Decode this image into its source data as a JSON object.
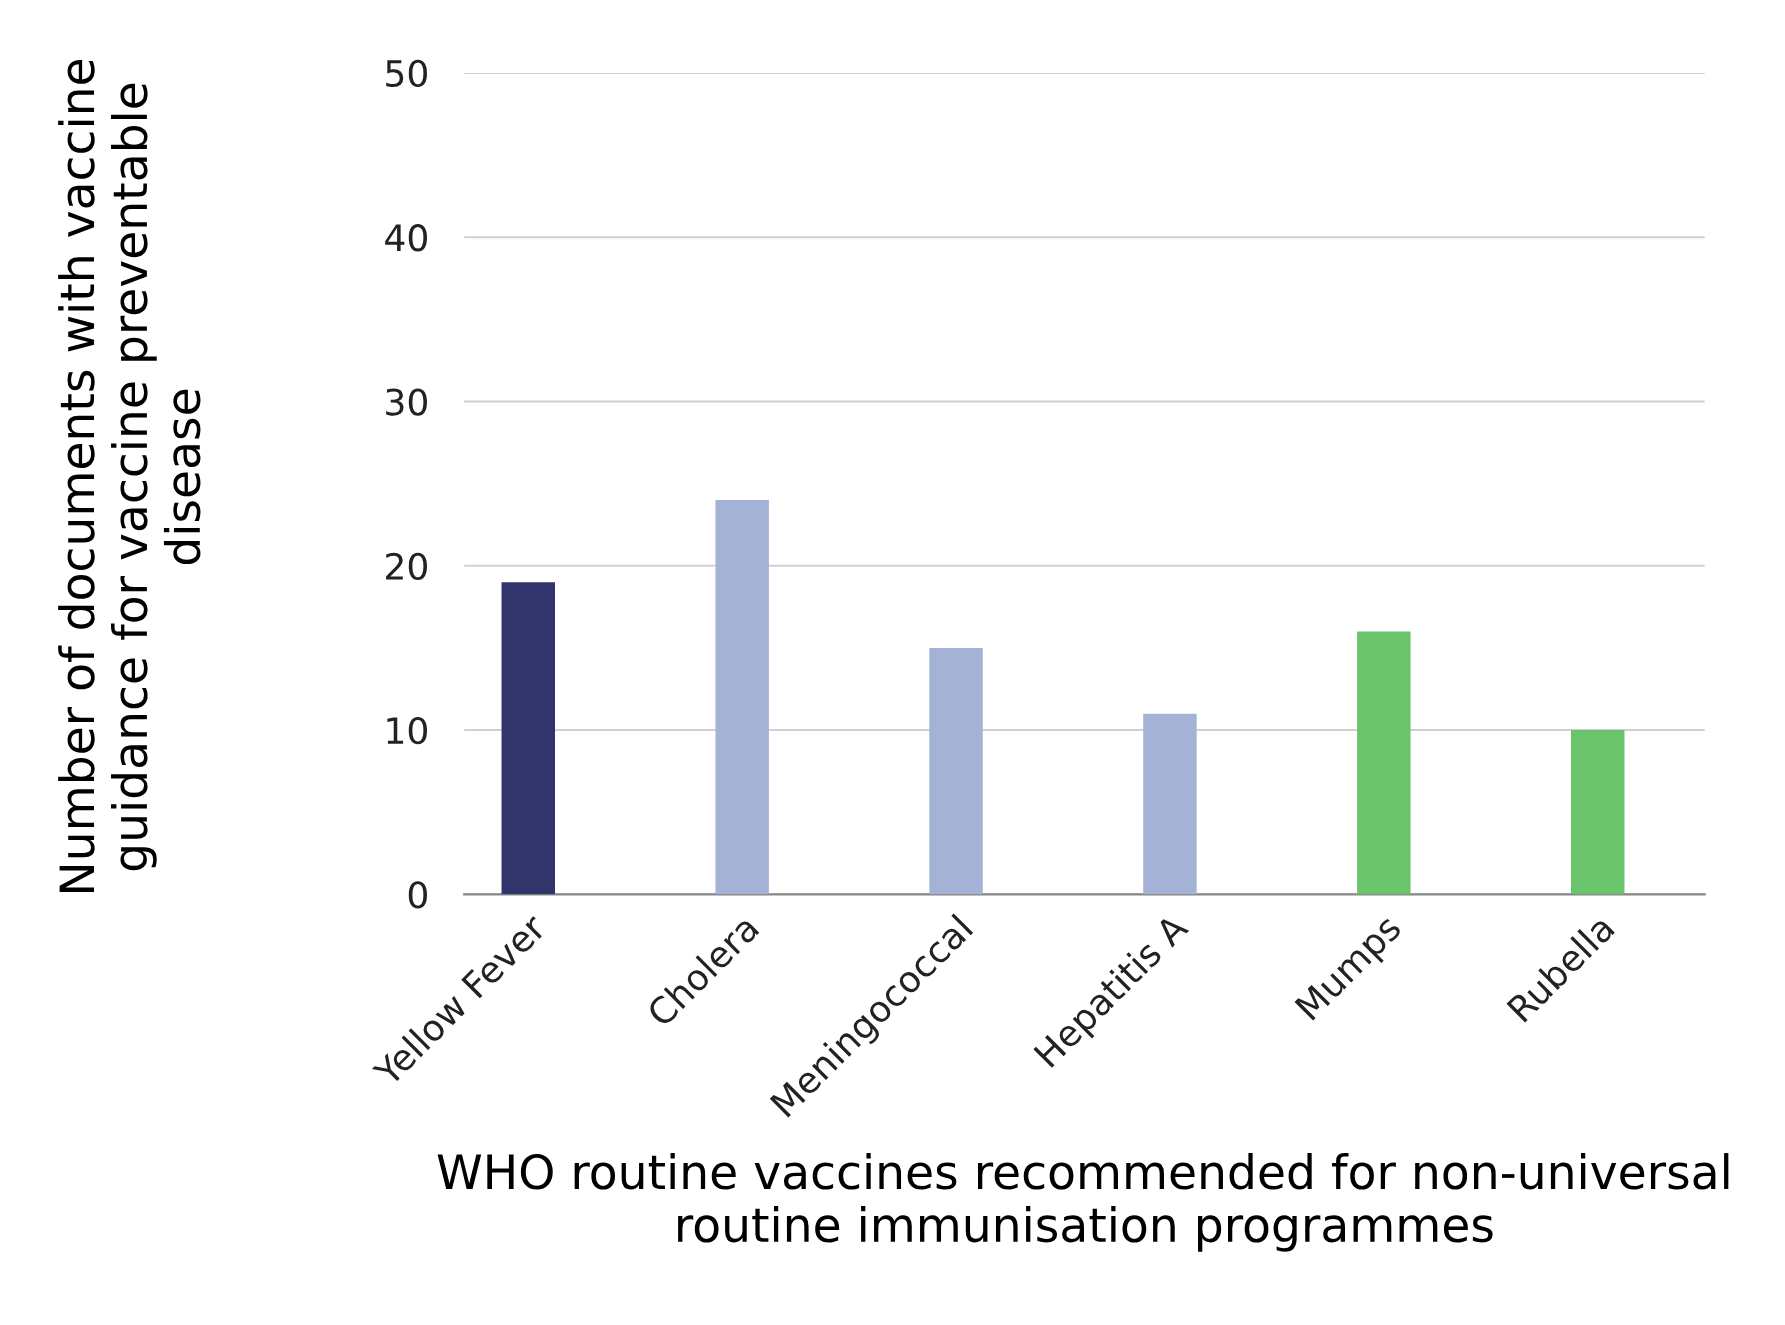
{
  "chart_data": {
    "type": "bar",
    "xlabel": "WHO routine vaccines recommended for non-universal routine immunisation programmes",
    "ylabel": "Number of documents with vaccine guidance for vaccine preventable disease",
    "categories": [
      "Yellow Fever",
      "Cholera",
      "Meningococcal",
      "Hepatitis A",
      "Mumps",
      "Rubella"
    ],
    "values": [
      19,
      24,
      15,
      11,
      16,
      10
    ],
    "colors": [
      "#31356b",
      "#a4b3d5",
      "#a4b3d5",
      "#a4b3d5",
      "#6ac46c",
      "#6ac46c"
    ],
    "ylim": [
      0,
      50
    ],
    "yticks": [
      0,
      10,
      20,
      30,
      40,
      50
    ],
    "grid": "y",
    "legend": false
  }
}
